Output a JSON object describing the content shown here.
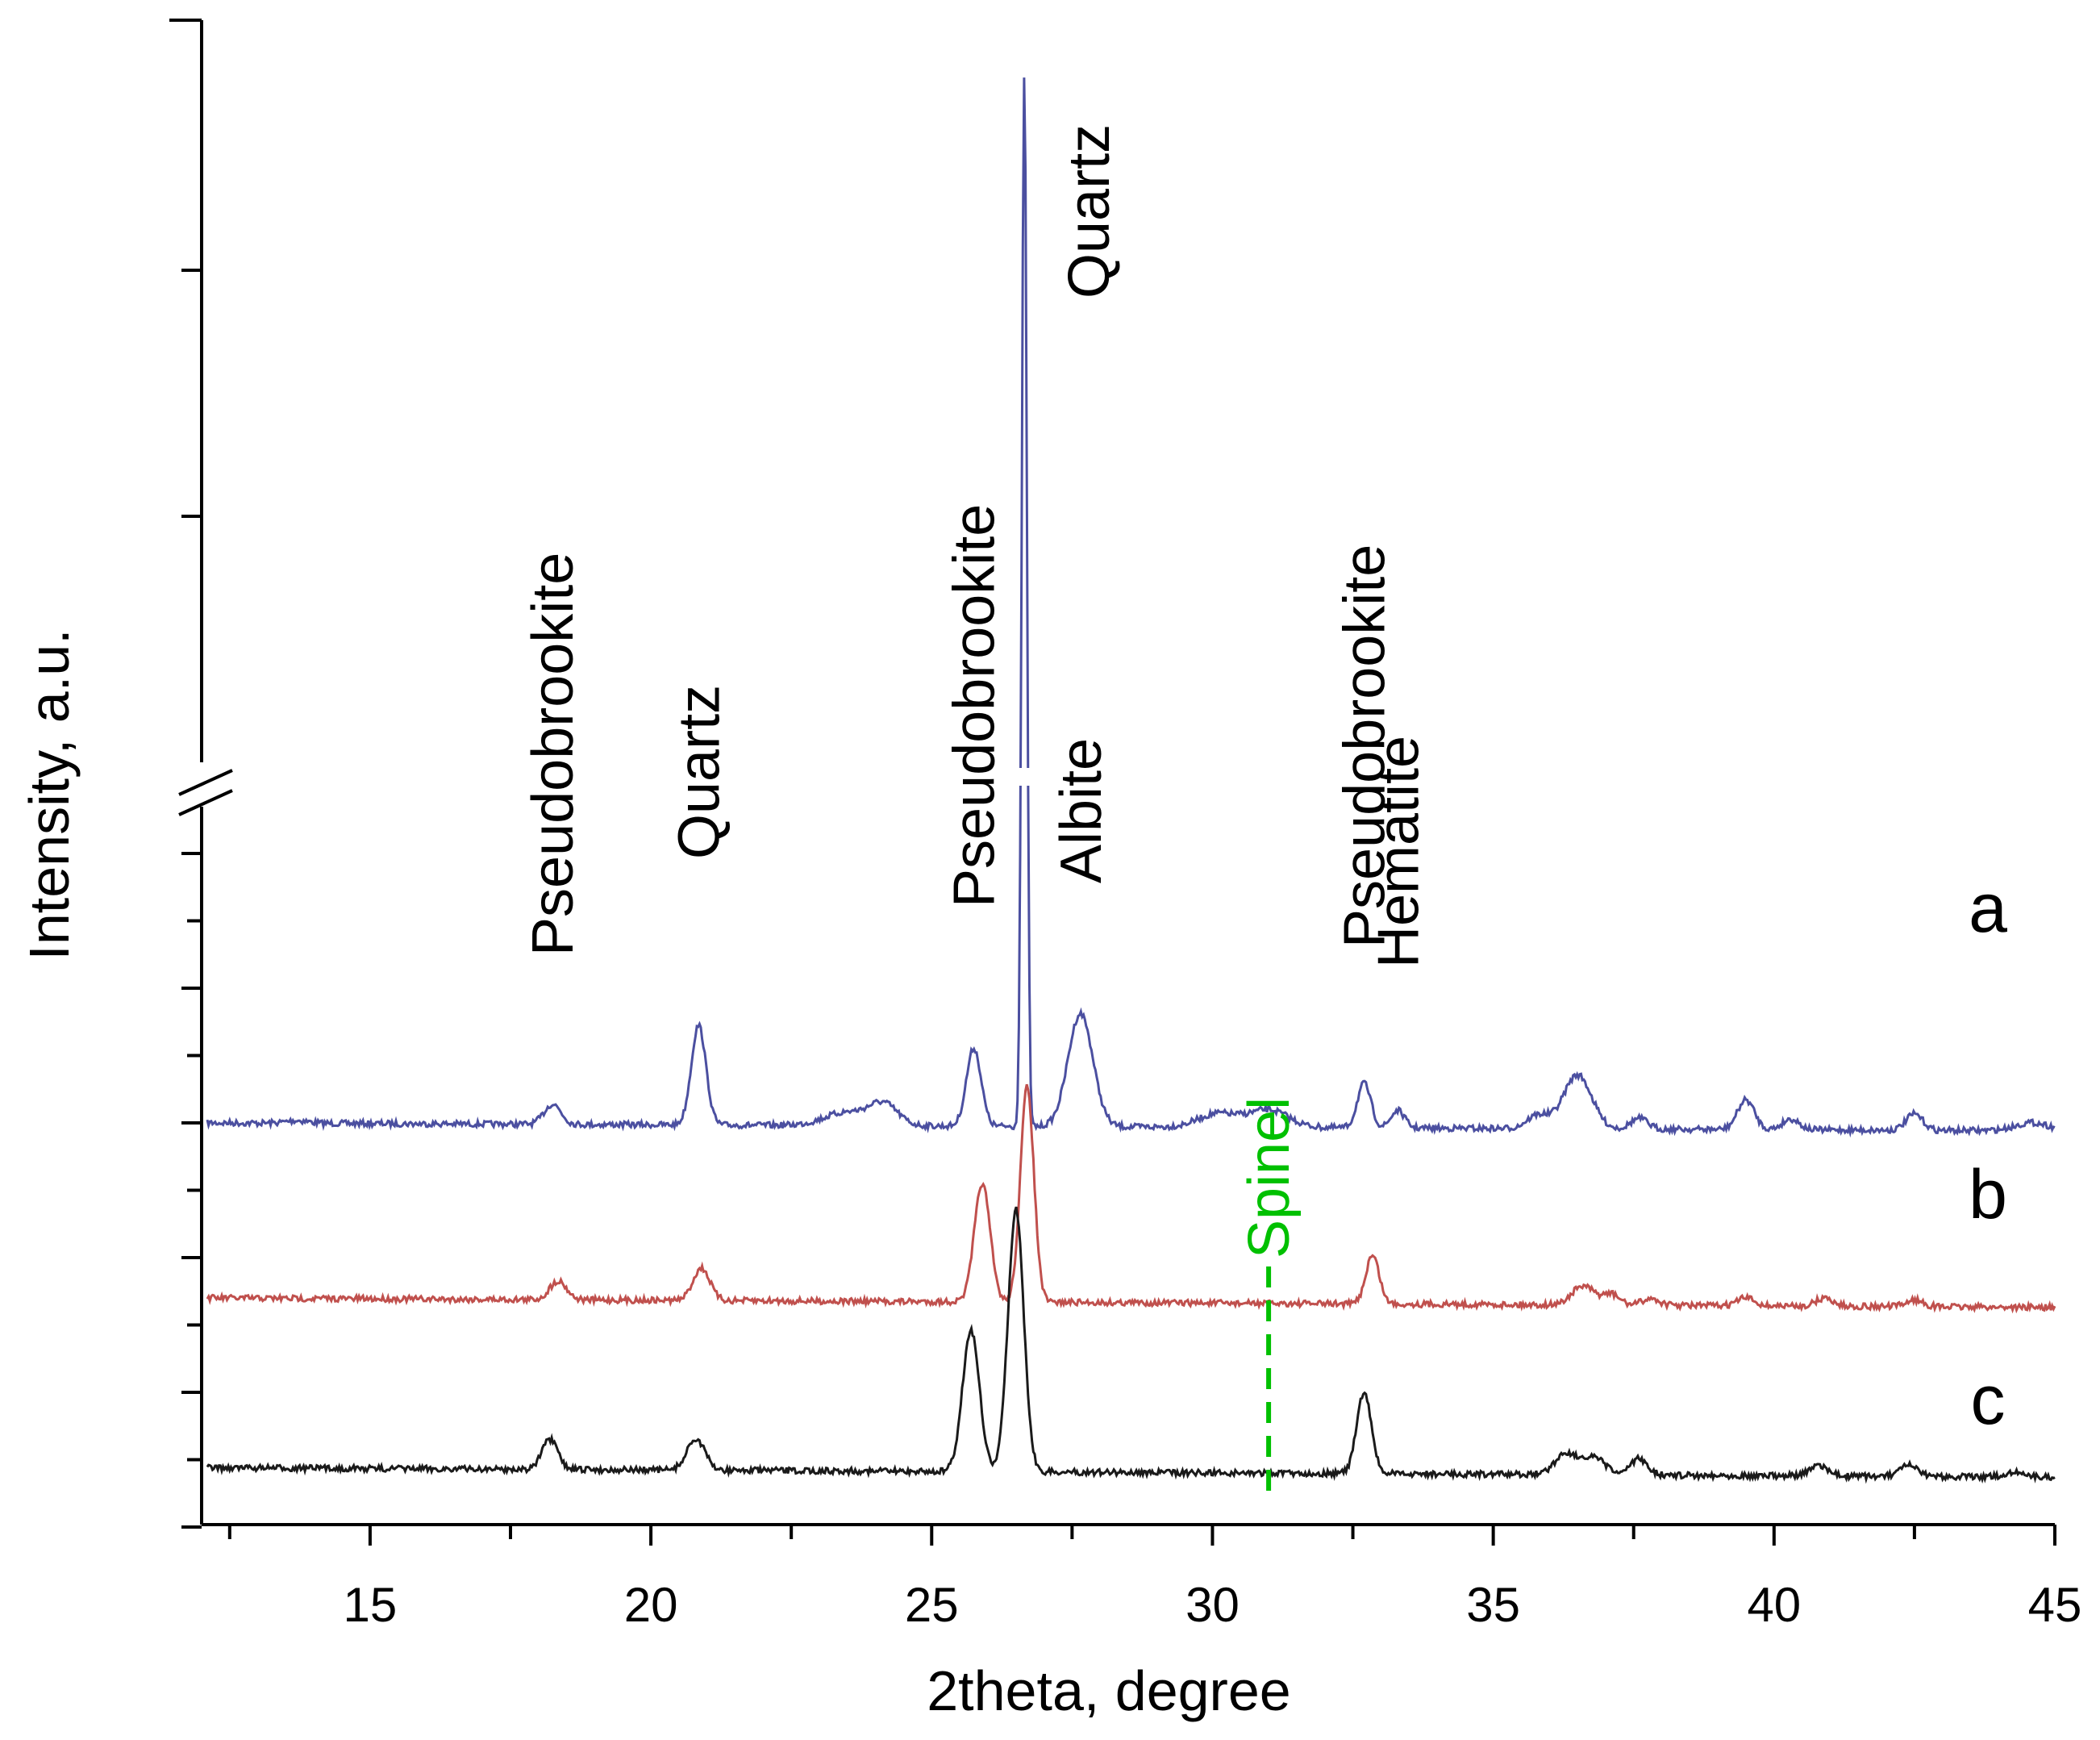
{
  "chart_data": {
    "type": "line",
    "xlabel": "2theta, degree",
    "ylabel": "Intensity, a.u.",
    "xlim": [
      12,
      45
    ],
    "x_ticks": [
      15,
      20,
      25,
      30,
      35,
      40,
      45
    ],
    "x_minor_step": 2.5,
    "y_scale": "broken (axis break between lower and upper segments)",
    "grid": false,
    "legend": "none (curves labelled a, b, c at right)",
    "series": [
      {
        "name": "a",
        "color": "#4b4fa0",
        "baseline": 0.64,
        "peaks": [
          {
            "x": 13.7,
            "h": 0.02,
            "w": 0.2
          },
          {
            "x": 18.25,
            "h": 0.15,
            "w": 0.15
          },
          {
            "x": 20.85,
            "h": 0.74,
            "w": 0.13
          },
          {
            "x": 23.5,
            "h": 0.1,
            "w": 0.4
          },
          {
            "x": 24.15,
            "h": 0.15,
            "w": 0.25
          },
          {
            "x": 25.75,
            "h": 0.58,
            "w": 0.13
          },
          {
            "x": 26.65,
            "h": 7.8,
            "w": 0.045
          },
          {
            "x": 27.65,
            "h": 0.84,
            "w": 0.22
          },
          {
            "x": 30.1,
            "h": 0.1,
            "w": 0.35
          },
          {
            "x": 31.0,
            "h": 0.13,
            "w": 0.35
          },
          {
            "x": 32.7,
            "h": 0.33,
            "w": 0.12
          },
          {
            "x": 33.3,
            "h": 0.13,
            "w": 0.12
          },
          {
            "x": 35.8,
            "h": 0.1,
            "w": 0.2
          },
          {
            "x": 36.5,
            "h": 0.4,
            "w": 0.25
          },
          {
            "x": 37.6,
            "h": 0.08,
            "w": 0.15
          },
          {
            "x": 39.5,
            "h": 0.22,
            "w": 0.15
          },
          {
            "x": 40.3,
            "h": 0.08,
            "w": 0.15
          },
          {
            "x": 42.5,
            "h": 0.12,
            "w": 0.15
          },
          {
            "x": 44.6,
            "h": 0.06,
            "w": 0.3
          }
        ]
      },
      {
        "name": "b",
        "color": "#c0504d",
        "baseline": 1.94,
        "peaks": [
          {
            "x": 18.35,
            "h": 0.14,
            "w": 0.15
          },
          {
            "x": 20.9,
            "h": 0.24,
            "w": 0.15
          },
          {
            "x": 25.9,
            "h": 0.88,
            "w": 0.14
          },
          {
            "x": 26.7,
            "h": 1.6,
            "w": 0.12
          },
          {
            "x": 32.85,
            "h": 0.36,
            "w": 0.12
          },
          {
            "x": 36.6,
            "h": 0.14,
            "w": 0.2
          },
          {
            "x": 37.1,
            "h": 0.08,
            "w": 0.15
          },
          {
            "x": 37.8,
            "h": 0.05,
            "w": 0.15
          },
          {
            "x": 39.5,
            "h": 0.06,
            "w": 0.15
          },
          {
            "x": 40.9,
            "h": 0.06,
            "w": 0.15
          },
          {
            "x": 42.5,
            "h": 0.05,
            "w": 0.15
          }
        ]
      },
      {
        "name": "c",
        "color": "#1a1a1a",
        "baseline": 3.2,
        "peaks": [
          {
            "x": 18.2,
            "h": 0.22,
            "w": 0.14
          },
          {
            "x": 20.8,
            "h": 0.23,
            "w": 0.16
          },
          {
            "x": 25.7,
            "h": 1.05,
            "w": 0.15
          },
          {
            "x": 26.5,
            "h": 1.95,
            "w": 0.14
          },
          {
            "x": 32.7,
            "h": 0.6,
            "w": 0.13
          },
          {
            "x": 36.3,
            "h": 0.16,
            "w": 0.2
          },
          {
            "x": 36.8,
            "h": 0.12,
            "w": 0.2
          },
          {
            "x": 37.6,
            "h": 0.12,
            "w": 0.15
          },
          {
            "x": 40.8,
            "h": 0.08,
            "w": 0.15
          },
          {
            "x": 42.4,
            "h": 0.08,
            "w": 0.15
          },
          {
            "x": 44.3,
            "h": 0.04,
            "w": 0.15
          }
        ]
      }
    ],
    "annotations": [
      {
        "text": "Pseudobrookite",
        "x": 18.25,
        "rotated": true
      },
      {
        "text": "Quartz",
        "x": 20.85,
        "rotated": true
      },
      {
        "text": "Pseudobrookite",
        "x": 25.75,
        "rotated": true
      },
      {
        "text": "Quartz",
        "x": 26.65,
        "rotated": true
      },
      {
        "text": "Albite",
        "x": 27.65,
        "rotated": true
      },
      {
        "text": "Pseudobrookite",
        "x": 32.7,
        "rotated": true
      },
      {
        "text": "Hematite",
        "x": 33.3,
        "rotated": true
      }
    ],
    "marker": {
      "text": "Spinel",
      "x": 31.0,
      "color": "#00c000",
      "style": "dashed vertical line"
    },
    "curve_labels": [
      "a",
      "b",
      "c"
    ]
  }
}
